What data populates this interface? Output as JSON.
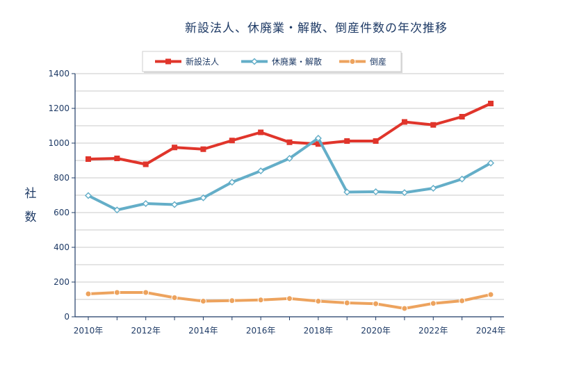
{
  "chart_data": {
    "type": "line",
    "title": "新設法人、休廃業・解散、倒産件数の年次推移",
    "ylabel": "社数",
    "ylim": [
      0,
      1400
    ],
    "yticks": [
      0,
      200,
      400,
      600,
      800,
      1000,
      1200,
      1400
    ],
    "x": [
      2010,
      2011,
      2012,
      2013,
      2014,
      2015,
      2016,
      2017,
      2018,
      2019,
      2020,
      2021,
      2022,
      2023,
      2024
    ],
    "xtick_labels": [
      "2010年",
      "2012年",
      "2014年",
      "2016年",
      "2018年",
      "2020年",
      "2022年",
      "2024年"
    ],
    "grid": true,
    "legend_position": "top",
    "series": [
      {
        "name": "新設法人",
        "color": "#e0352b",
        "marker": "square",
        "values": [
          908,
          912,
          878,
          975,
          965,
          1015,
          1062,
          1005,
          995,
          1012,
          1012,
          1122,
          1105,
          1152,
          1228
        ]
      },
      {
        "name": "休廃業・解散",
        "color": "#64aec8",
        "marker": "diamond",
        "values": [
          698,
          615,
          652,
          646,
          685,
          775,
          840,
          912,
          1028,
          718,
          720,
          715,
          740,
          793,
          885
        ]
      },
      {
        "name": "倒産",
        "color": "#eda35e",
        "marker": "circle",
        "values": [
          132,
          140,
          140,
          110,
          90,
          93,
          97,
          105,
          90,
          80,
          75,
          48,
          77,
          92,
          128
        ]
      }
    ]
  }
}
